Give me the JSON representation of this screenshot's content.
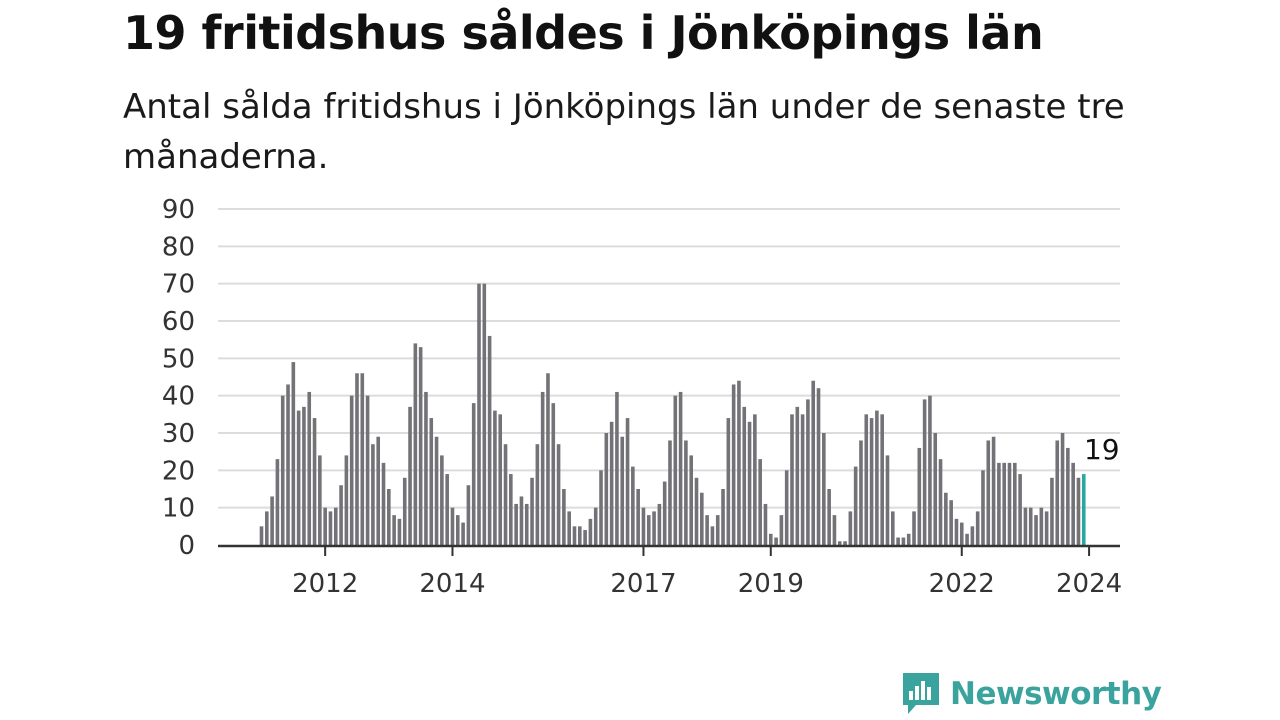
{
  "title": "19 fritidshus såldes i Jönköpings län",
  "subtitle": "Antal sålda fritidshus i Jönköpings län under de senaste tre månaderna.",
  "brand": {
    "name": "Newsworthy",
    "icon": "newsworthy-logo-icon",
    "color": "#3aa39e"
  },
  "colors": {
    "bar": "#737277",
    "highlight": "#2aa7a1",
    "grid": "#dcdcdc",
    "axis": "#333333"
  },
  "chart_data": {
    "type": "bar",
    "ylim": [
      0,
      90
    ],
    "yticks": [
      0,
      10,
      20,
      30,
      40,
      50,
      60,
      70,
      80,
      90
    ],
    "grid": true,
    "x_start": "2011-01",
    "xticks": [
      "2012",
      "2014",
      "2017",
      "2019",
      "2022",
      "2024"
    ],
    "highlight_label": "19",
    "values": [
      5,
      9,
      13,
      23,
      40,
      43,
      49,
      36,
      37,
      41,
      34,
      24,
      10,
      9,
      10,
      16,
      24,
      40,
      46,
      46,
      40,
      27,
      29,
      22,
      15,
      8,
      7,
      18,
      37,
      54,
      53,
      41,
      34,
      29,
      24,
      19,
      10,
      8,
      6,
      16,
      38,
      70,
      70,
      56,
      36,
      35,
      27,
      19,
      11,
      13,
      11,
      18,
      27,
      41,
      46,
      38,
      27,
      15,
      9,
      5,
      5,
      4,
      7,
      10,
      20,
      30,
      33,
      41,
      29,
      34,
      21,
      15,
      10,
      8,
      9,
      11,
      17,
      28,
      40,
      41,
      28,
      24,
      18,
      14,
      8,
      5,
      8,
      15,
      34,
      43,
      44,
      37,
      33,
      35,
      23,
      11,
      3,
      2,
      8,
      20,
      35,
      37,
      35,
      39,
      44,
      42,
      30,
      15,
      8,
      1,
      1,
      9,
      21,
      28,
      35,
      34,
      36,
      35,
      24,
      9,
      2,
      2,
      3,
      9,
      26,
      39,
      40,
      30,
      23,
      14,
      12,
      7,
      6,
      3,
      5,
      9,
      20,
      28,
      29,
      22,
      22,
      22,
      22,
      19,
      10,
      10,
      8,
      10,
      9,
      18,
      28,
      30,
      26,
      22,
      18,
      19
    ]
  }
}
